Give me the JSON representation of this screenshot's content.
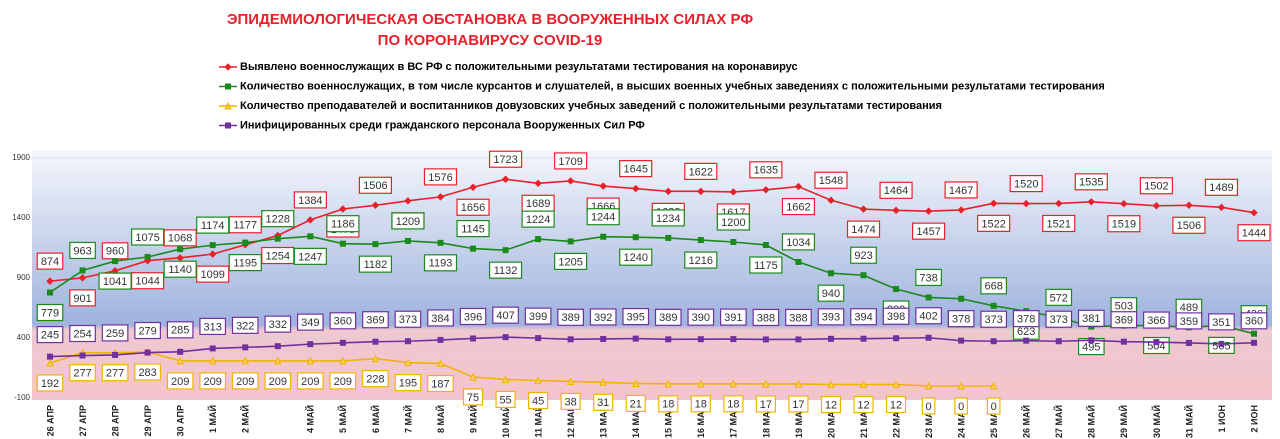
{
  "chart_data": {
    "type": "line",
    "title": "ЭПИДЕМИОЛОГИЧЕСКАЯ ОБСТАНОВКА В ВООРУЖЕННЫХ СИЛАХ РФ",
    "subtitle": "ПО КОРОНАВИРУСУ COVID-19",
    "categories": [
      "26 АПР",
      "27 АПР",
      "28 АПР",
      "29 АПР",
      "30 АПР",
      "1 МАЙ",
      "2 МАЙ",
      null,
      "4 МАЙ",
      "5 МАЙ",
      "6 МАЙ",
      "7 МАЙ",
      "8 МАЙ",
      "9 МАЙ",
      "10 МАЙ",
      "11 МАЙ",
      "12 МАЙ",
      "13 МАЙ",
      "14 МАЙ",
      "15 МАЙ",
      "16 МАЙ",
      "17 МАЙ",
      "18 МАЙ",
      "19 МАЙ",
      "20 МАЙ",
      "21 МАЙ",
      "22 МАЙ",
      "23 МАЙ",
      "24 МАЙ",
      "25 МАЙ",
      "26 МАЙ",
      "27 МАЙ",
      "28 МАЙ",
      "29 МАЙ",
      "30 МАЙ",
      "31 МАЙ",
      "1 ИОН",
      "2 ИОН"
    ],
    "series": [
      {
        "name": "Выявлено военнослужащих в ВС РФ с положительными результатами тестирования на коронавирус",
        "color": "#e8202a",
        "marker": "diamond",
        "values": [
          874,
          901,
          960,
          1044,
          1068,
          1099,
          1177,
          1254,
          1384,
          1475,
          1506,
          1543,
          1576,
          1656,
          1723,
          1689,
          1709,
          1666,
          1645,
          1622,
          1622,
          1617,
          1635,
          1662,
          1548,
          1474,
          1464,
          1457,
          1467,
          1522,
          1520,
          1521,
          1535,
          1519,
          1502,
          1506,
          1489,
          1444
        ]
      },
      {
        "name": "Количество военнослужащих, в том числе курсантов и слушателей, в высших военных учебных заведениях с положительными результатами тестирования",
        "color": "#1a8a1a",
        "marker": "square",
        "values": [
          779,
          963,
          1041,
          1075,
          1140,
          1174,
          1195,
          1228,
          1247,
          1186,
          1182,
          1209,
          1193,
          1145,
          1132,
          1224,
          1205,
          1244,
          1240,
          1234,
          1216,
          1200,
          1175,
          1034,
          940,
          923,
          808,
          738,
          727,
          668,
          623,
          572,
          495,
          503,
          504,
          489,
          505,
          436
        ]
      },
      {
        "name": "Количество преподавателей и воспитанников довузовских учебных заведений с положительными результатами тестирования",
        "color": "#f0b400",
        "marker": "triangle",
        "values": [
          192,
          277,
          277,
          283,
          209,
          209,
          209,
          209,
          209,
          209,
          228,
          195,
          187,
          75,
          55,
          45,
          38,
          31,
          21,
          18,
          18,
          18,
          17,
          17,
          12,
          12,
          12,
          0,
          0,
          0,
          null,
          null,
          null,
          null,
          null,
          null,
          null,
          null
        ]
      },
      {
        "name": "Инифицированных среди гражданского персонала Вооруженных Сил РФ",
        "color": "#7030a0",
        "marker": "square",
        "values": [
          245,
          254,
          259,
          279,
          285,
          313,
          322,
          332,
          349,
          360,
          369,
          373,
          384,
          396,
          407,
          399,
          389,
          392,
          395,
          389,
          390,
          391,
          388,
          388,
          393,
          394,
          398,
          402,
          378,
          373,
          378,
          373,
          381,
          369,
          366,
          359,
          351,
          360
        ]
      }
    ],
    "ylim": [
      -100,
      1900
    ],
    "yticks": [
      -100,
      400,
      900,
      1400,
      1900
    ],
    "grid": true
  }
}
